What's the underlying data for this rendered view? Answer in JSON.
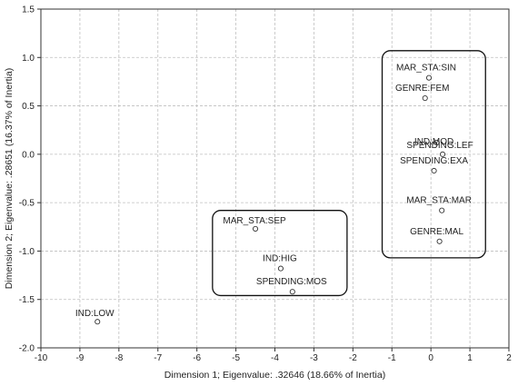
{
  "chart_data": {
    "type": "scatter",
    "title": "",
    "xlabel": "Dimension 1; Eigenvalue: .32646 (18.66% of Inertia)",
    "ylabel": "Dimension 2; Eigenvalue: .28651 (16.37% of Inertia)",
    "xlim": [
      -10,
      2
    ],
    "ylim": [
      -2.0,
      1.5
    ],
    "grid": true,
    "x_ticks": [
      -10,
      -9,
      -8,
      -7,
      -6,
      -5,
      -4,
      -3,
      -2,
      -1,
      0,
      1,
      2
    ],
    "y_ticks": [
      -2.0,
      -1.5,
      -1.0,
      -0.5,
      0.0,
      0.5,
      1.0,
      1.5
    ],
    "x_tick_labels": [
      "-10",
      "-9",
      "-8",
      "-7",
      "-6",
      "-5",
      "-4",
      "-3",
      "-2",
      "-1",
      "0",
      "1",
      "2"
    ],
    "y_tick_labels": [
      "-2.0",
      "-1.5",
      "-1.0",
      "-0.5",
      "0.0",
      "0.5",
      "1.0",
      "1.5"
    ],
    "points": [
      {
        "label": "MAR_STA:SIN",
        "x": -0.05,
        "y": 0.79
      },
      {
        "label": "GENRE:FEM",
        "x": -0.15,
        "y": 0.58
      },
      {
        "label": "IND:MOD",
        "x": 0.15,
        "y": 0.12
      },
      {
        "label": "SPENDING:LEF",
        "x": 0.3,
        "y": 0.0
      },
      {
        "label": "SPENDING:EXA",
        "x": 0.08,
        "y": -0.17
      },
      {
        "label": "MAR_STA:MAR",
        "x": 0.28,
        "y": -0.58
      },
      {
        "label": "GENRE:MAL",
        "x": 0.22,
        "y": -0.9
      },
      {
        "label": "MAR_STA:SEP",
        "x": -4.5,
        "y": -0.77
      },
      {
        "label": "IND:HIG",
        "x": -3.85,
        "y": -1.18
      },
      {
        "label": "SPENDING:MOS",
        "x": -3.55,
        "y": -1.42
      },
      {
        "label": "IND:LOW",
        "x": -8.55,
        "y": -1.73
      }
    ],
    "groups": [
      {
        "members": [
          "MAR_STA:SIN",
          "GENRE:FEM",
          "IND:MOD",
          "SPENDING:LEF",
          "SPENDING:EXA",
          "MAR_STA:MAR",
          "GENRE:MAL"
        ],
        "x_range": [
          -1.25,
          1.4
        ],
        "y_range": [
          -1.07,
          1.07
        ]
      },
      {
        "members": [
          "MAR_STA:SEP",
          "IND:HIG",
          "SPENDING:MOS"
        ],
        "x_range": [
          -5.6,
          -2.15
        ],
        "y_range": [
          -1.46,
          -0.58
        ]
      }
    ]
  }
}
